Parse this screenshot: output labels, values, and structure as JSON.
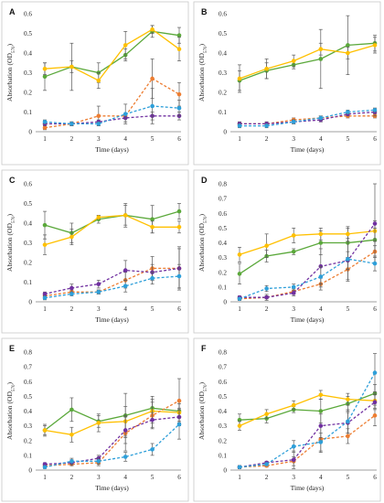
{
  "figure": {
    "colors": {
      "green": "#5aa83a",
      "yellow": "#ffc000",
      "orange": "#ed7d31",
      "purple": "#7030a0",
      "blue": "#2e9fd9"
    }
  },
  "chart_data": [
    {
      "panel": "A",
      "type": "line",
      "xlabel": "Time (days)",
      "ylabel": "Absorbation (OD",
      "ylabel_sub": "570",
      "ylabel_end": ")",
      "x": [
        1,
        2,
        3,
        4,
        5,
        6
      ],
      "xlim": [
        1,
        6
      ],
      "ylim": [
        0,
        0.6
      ],
      "yticks": [
        0,
        0.1,
        0.2,
        0.3,
        0.4,
        0.5,
        0.6
      ],
      "ytick_labels": [
        "0",
        "0.1",
        "0.2",
        "0.3",
        "0.4",
        "0.5",
        "0.6"
      ],
      "series": [
        {
          "color": "green",
          "dash": false,
          "values": [
            0.28,
            0.33,
            0.3,
            0.39,
            0.51,
            0.49
          ],
          "errors": [
            0.07,
            0.12,
            0.05,
            0.03,
            0.03,
            0.04
          ]
        },
        {
          "color": "yellow",
          "dash": false,
          "values": [
            0.32,
            0.33,
            0.26,
            0.44,
            0.52,
            0.42
          ],
          "errors": [
            0.03,
            0.03,
            0.04,
            0.07,
            0.02,
            0.06
          ]
        },
        {
          "color": "orange",
          "dash": true,
          "values": [
            0.02,
            0.04,
            0.08,
            0.08,
            0.27,
            0.19
          ],
          "errors": [
            0.01,
            0.01,
            0.05,
            0.01,
            0.1,
            0.06
          ]
        },
        {
          "color": "purple",
          "dash": true,
          "values": [
            0.04,
            0.04,
            0.05,
            0.07,
            0.08,
            0.08
          ],
          "errors": [
            0.01,
            0.01,
            0.01,
            0.02,
            0.02,
            0.02
          ]
        },
        {
          "color": "blue",
          "dash": true,
          "values": [
            0.05,
            0.04,
            0.04,
            0.09,
            0.13,
            0.12
          ],
          "errors": [
            0.01,
            0.01,
            0.01,
            0.05,
            0.09,
            0.04
          ]
        }
      ]
    },
    {
      "panel": "B",
      "type": "line",
      "xlabel": "Time (days)",
      "ylabel": "Absorbation (OD",
      "ylabel_sub": "570",
      "ylabel_end": ")",
      "x": [
        1,
        2,
        3,
        4,
        5,
        6
      ],
      "xlim": [
        1,
        6
      ],
      "ylim": [
        0,
        0.6
      ],
      "yticks": [
        0,
        0.1,
        0.2,
        0.3,
        0.4,
        0.5,
        0.6
      ],
      "ytick_labels": [
        "0",
        "0.1",
        "0.2",
        "0.3",
        "0.4",
        "0.5",
        "0.6"
      ],
      "series": [
        {
          "color": "green",
          "dash": false,
          "values": [
            0.26,
            0.31,
            0.34,
            0.37,
            0.44,
            0.45
          ],
          "errors": [
            0.05,
            0.04,
            0.02,
            0.15,
            0.15,
            0.04
          ]
        },
        {
          "color": "yellow",
          "dash": false,
          "values": [
            0.27,
            0.32,
            0.36,
            0.42,
            0.4,
            0.44
          ],
          "errors": [
            0.07,
            0.05,
            0.03,
            0.03,
            0.03,
            0.04
          ]
        },
        {
          "color": "orange",
          "dash": true,
          "values": [
            0.04,
            0.04,
            0.06,
            0.07,
            0.08,
            0.08
          ],
          "errors": [
            0.01,
            0.01,
            0.01,
            0.01,
            0.01,
            0.01
          ]
        },
        {
          "color": "purple",
          "dash": true,
          "values": [
            0.04,
            0.04,
            0.05,
            0.06,
            0.09,
            0.1
          ],
          "errors": [
            0.01,
            0.01,
            0.01,
            0.01,
            0.01,
            0.02
          ]
        },
        {
          "color": "blue",
          "dash": true,
          "values": [
            0.03,
            0.03,
            0.05,
            0.07,
            0.1,
            0.11
          ],
          "errors": [
            0.01,
            0.01,
            0.01,
            0.01,
            0.01,
            0.01
          ]
        }
      ]
    },
    {
      "panel": "C",
      "type": "line",
      "xlabel": "Time (days)",
      "ylabel": "Absorbation (OD",
      "ylabel_sub": "570",
      "ylabel_end": ")",
      "x": [
        1,
        2,
        3,
        4,
        5,
        6
      ],
      "xlim": [
        1,
        6
      ],
      "ylim": [
        0,
        0.6
      ],
      "yticks": [
        0,
        0.1,
        0.2,
        0.3,
        0.4,
        0.5,
        0.6
      ],
      "ytick_labels": [
        "0",
        "0.1",
        "0.2",
        "0.3",
        "0.4",
        "0.5",
        "0.6"
      ],
      "series": [
        {
          "color": "green",
          "dash": false,
          "values": [
            0.39,
            0.35,
            0.42,
            0.44,
            0.42,
            0.46
          ],
          "errors": [
            0.07,
            0.05,
            0.02,
            0.05,
            0.07,
            0.04
          ]
        },
        {
          "color": "yellow",
          "dash": false,
          "values": [
            0.29,
            0.33,
            0.43,
            0.44,
            0.38,
            0.38
          ],
          "errors": [
            0.05,
            0.04,
            0.01,
            0.06,
            0.03,
            0.03
          ]
        },
        {
          "color": "orange",
          "dash": true,
          "values": [
            0.03,
            0.05,
            0.05,
            0.11,
            0.17,
            0.17
          ],
          "errors": [
            0.01,
            0.01,
            0.01,
            0.04,
            0.06,
            0.1
          ]
        },
        {
          "color": "purple",
          "dash": true,
          "values": [
            0.04,
            0.07,
            0.09,
            0.16,
            0.15,
            0.17
          ],
          "errors": [
            0.01,
            0.02,
            0.02,
            0.05,
            0.04,
            0.11
          ]
        },
        {
          "color": "blue",
          "dash": true,
          "values": [
            0.02,
            0.04,
            0.05,
            0.08,
            0.12,
            0.13
          ],
          "errors": [
            0.01,
            0.01,
            0.01,
            0.03,
            0.03,
            0.06
          ]
        }
      ]
    },
    {
      "panel": "D",
      "type": "line",
      "xlabel": "Time (days)",
      "ylabel": "Absorbation (OD",
      "ylabel_sub": "570",
      "ylabel_end": ")",
      "x": [
        1,
        2,
        3,
        4,
        5,
        6
      ],
      "xlim": [
        1,
        6
      ],
      "ylim": [
        0,
        0.8
      ],
      "yticks": [
        0,
        0.1,
        0.2,
        0.3,
        0.4,
        0.5,
        0.6,
        0.7,
        0.8
      ],
      "ytick_labels": [
        "0",
        "0.1",
        "0.2",
        "0.3",
        "0.4",
        "0.5",
        "0.6",
        "0.7",
        "0.8"
      ],
      "series": [
        {
          "color": "green",
          "dash": false,
          "values": [
            0.19,
            0.31,
            0.34,
            0.4,
            0.4,
            0.42
          ],
          "errors": [
            0.07,
            0.04,
            0.02,
            0.08,
            0.1,
            0.08
          ]
        },
        {
          "color": "yellow",
          "dash": false,
          "values": [
            0.32,
            0.38,
            0.45,
            0.46,
            0.46,
            0.48
          ],
          "errors": [
            0.05,
            0.08,
            0.05,
            0.04,
            0.05,
            0.07
          ]
        },
        {
          "color": "orange",
          "dash": true,
          "values": [
            0.02,
            0.03,
            0.07,
            0.12,
            0.22,
            0.34
          ],
          "errors": [
            0.01,
            0.02,
            0.02,
            0.04,
            0.08,
            0.04
          ]
        },
        {
          "color": "purple",
          "dash": true,
          "values": [
            0.03,
            0.03,
            0.06,
            0.24,
            0.28,
            0.53
          ],
          "errors": [
            0.01,
            0.01,
            0.02,
            0.12,
            0.06,
            0.27
          ]
        },
        {
          "color": "blue",
          "dash": true,
          "values": [
            0.02,
            0.09,
            0.1,
            0.17,
            0.29,
            0.26
          ],
          "errors": [
            0.01,
            0.02,
            0.02,
            0.07,
            0.14,
            0.05
          ]
        }
      ]
    },
    {
      "panel": "E",
      "type": "line",
      "xlabel": "Time (days)",
      "ylabel": "Absorbation (OD",
      "ylabel_sub": "570",
      "ylabel_end": ")",
      "x": [
        1,
        2,
        3,
        4,
        5,
        6
      ],
      "xlim": [
        1,
        6
      ],
      "ylim": [
        0,
        0.8
      ],
      "yticks": [
        0,
        0.1,
        0.2,
        0.3,
        0.4,
        0.5,
        0.6,
        0.7,
        0.8
      ],
      "ytick_labels": [
        "0",
        "0.1",
        "0.2",
        "0.3",
        "0.4",
        "0.5",
        "0.6",
        "0.7",
        "0.8"
      ],
      "series": [
        {
          "color": "green",
          "dash": false,
          "values": [
            0.27,
            0.41,
            0.33,
            0.37,
            0.42,
            0.4
          ],
          "errors": [
            0.03,
            0.08,
            0.04,
            0.15,
            0.08,
            0.07
          ]
        },
        {
          "color": "yellow",
          "dash": false,
          "values": [
            0.27,
            0.24,
            0.32,
            0.33,
            0.4,
            0.39
          ],
          "errors": [
            0.04,
            0.05,
            0.06,
            0.1,
            0.08,
            0.06
          ]
        },
        {
          "color": "orange",
          "dash": true,
          "values": [
            0.03,
            0.04,
            0.05,
            0.25,
            0.37,
            0.47
          ],
          "errors": [
            0.01,
            0.01,
            0.02,
            0.12,
            0.09,
            0.15
          ]
        },
        {
          "color": "purple",
          "dash": true,
          "values": [
            0.04,
            0.05,
            0.08,
            0.27,
            0.34,
            0.36
          ],
          "errors": [
            0.01,
            0.02,
            0.02,
            0.09,
            0.05,
            0.06
          ]
        },
        {
          "color": "blue",
          "dash": true,
          "values": [
            0.02,
            0.06,
            0.06,
            0.09,
            0.14,
            0.31
          ],
          "errors": [
            0.01,
            0.02,
            0.02,
            0.03,
            0.04,
            0.1
          ]
        }
      ]
    },
    {
      "panel": "F",
      "type": "line",
      "xlabel": "Time (days)",
      "ylabel": "Absorbation (OD",
      "ylabel_sub": "570",
      "ylabel_end": ")",
      "x": [
        1,
        2,
        3,
        4,
        5,
        6
      ],
      "xlim": [
        1,
        6
      ],
      "ylim": [
        0,
        0.8
      ],
      "yticks": [
        0,
        0.1,
        0.2,
        0.3,
        0.4,
        0.5,
        0.6,
        0.7,
        0.8
      ],
      "ytick_labels": [
        "0",
        "0.1",
        "0.2",
        "0.3",
        "0.4",
        "0.5",
        "0.6",
        "0.7",
        "0.8"
      ],
      "series": [
        {
          "color": "green",
          "dash": false,
          "values": [
            0.34,
            0.35,
            0.41,
            0.4,
            0.45,
            0.52
          ],
          "errors": [
            0.04,
            0.03,
            0.02,
            0.08,
            0.05,
            0.06
          ]
        },
        {
          "color": "yellow",
          "dash": false,
          "values": [
            0.3,
            0.38,
            0.44,
            0.51,
            0.48,
            0.47
          ],
          "errors": [
            0.03,
            0.03,
            0.03,
            0.03,
            0.04,
            0.05
          ]
        },
        {
          "color": "orange",
          "dash": true,
          "values": [
            0.02,
            0.03,
            0.06,
            0.21,
            0.23,
            0.37
          ],
          "errors": [
            0.01,
            0.01,
            0.03,
            0.09,
            0.05,
            0.07
          ]
        },
        {
          "color": "purple",
          "dash": true,
          "values": [
            0.02,
            0.05,
            0.07,
            0.3,
            0.32,
            0.46
          ],
          "errors": [
            0.01,
            0.01,
            0.06,
            0.08,
            0.07,
            0.05
          ]
        },
        {
          "color": "blue",
          "dash": true,
          "values": [
            0.02,
            0.04,
            0.16,
            0.19,
            0.33,
            0.66
          ],
          "errors": [
            0.01,
            0.01,
            0.04,
            0.06,
            0.08,
            0.13
          ]
        }
      ]
    }
  ]
}
